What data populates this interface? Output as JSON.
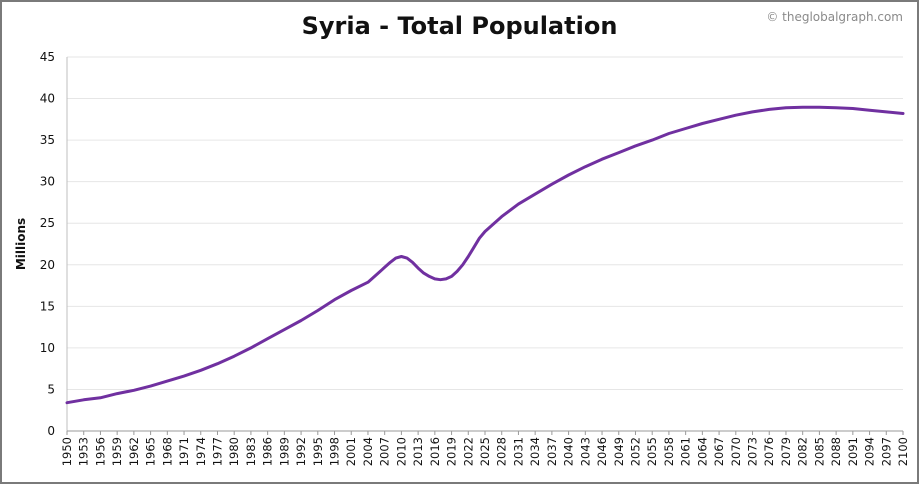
{
  "chart_data": {
    "type": "line",
    "title": "Syria - Total Population",
    "watermark": "© theglobalgraph.com",
    "xlabel": "",
    "ylabel": "Millions",
    "ylim": [
      0,
      45
    ],
    "yticks": [
      0,
      5,
      10,
      15,
      20,
      25,
      30,
      35,
      40,
      45
    ],
    "xlim": [
      1950,
      2100
    ],
    "xticks": [
      1950,
      1953,
      1956,
      1959,
      1962,
      1965,
      1968,
      1971,
      1974,
      1977,
      1980,
      1983,
      1986,
      1989,
      1992,
      1995,
      1998,
      2001,
      2004,
      2007,
      2010,
      2013,
      2016,
      2019,
      2022,
      2025,
      2028,
      2031,
      2034,
      2037,
      2040,
      2043,
      2046,
      2049,
      2052,
      2055,
      2058,
      2061,
      2064,
      2067,
      2070,
      2073,
      2076,
      2079,
      2082,
      2085,
      2088,
      2091,
      2094,
      2097,
      2100
    ],
    "grid": true,
    "series_color": "#7030a0",
    "series": [
      {
        "x": [
          1950,
          1953,
          1956,
          1959,
          1962,
          1965,
          1968,
          1971,
          1974,
          1977,
          1980,
          1983,
          1986,
          1989,
          1992,
          1995,
          1998,
          2001,
          2004,
          2007,
          2008,
          2009,
          2010,
          2011,
          2012,
          2013,
          2014,
          2015,
          2016,
          2017,
          2018,
          2019,
          2020,
          2021,
          2022,
          2023,
          2024,
          2025,
          2028,
          2031,
          2034,
          2037,
          2040,
          2043,
          2046,
          2049,
          2052,
          2055,
          2058,
          2061,
          2064,
          2067,
          2070,
          2073,
          2076,
          2079,
          2082,
          2085,
          2088,
          2091,
          2094,
          2097,
          2100
        ],
        "values": [
          3.4,
          3.75,
          4.0,
          4.5,
          4.9,
          5.4,
          6.0,
          6.6,
          7.3,
          8.1,
          9.0,
          10.0,
          11.1,
          12.2,
          13.3,
          14.5,
          15.8,
          16.9,
          17.9,
          19.7,
          20.3,
          20.8,
          21.0,
          20.8,
          20.3,
          19.6,
          19.0,
          18.6,
          18.3,
          18.2,
          18.3,
          18.6,
          19.2,
          20.0,
          21.0,
          22.1,
          23.2,
          24.0,
          25.8,
          27.3,
          28.5,
          29.7,
          30.8,
          31.8,
          32.7,
          33.5,
          34.3,
          35.0,
          35.8,
          36.4,
          37.0,
          37.5,
          38.0,
          38.4,
          38.7,
          38.9,
          38.95,
          38.95,
          38.9,
          38.8,
          38.6,
          38.4,
          38.2
        ]
      }
    ]
  }
}
